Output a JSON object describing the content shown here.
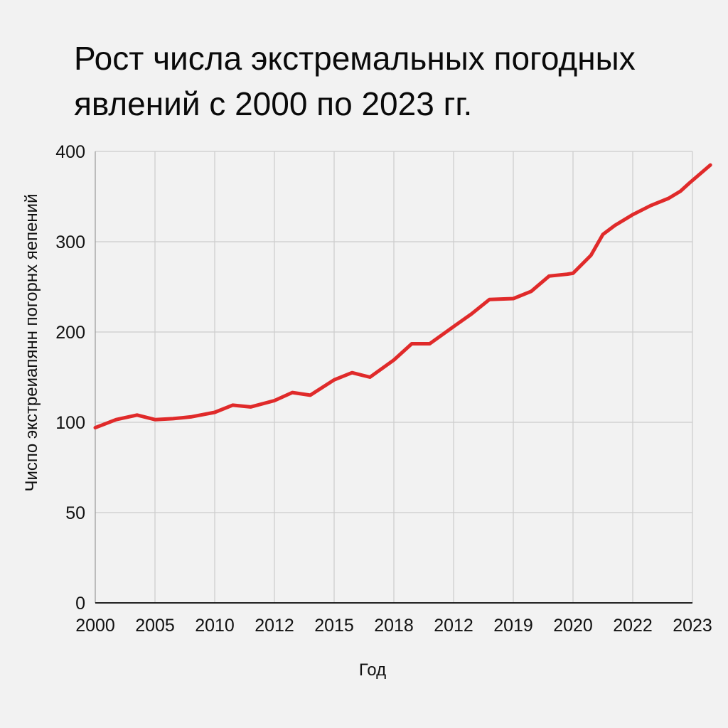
{
  "chart_data": {
    "type": "line",
    "title": "Рост числа экстремальных погодных явлений с 2000 по 2023 гг.",
    "xlabel": "Год",
    "ylabel": "Чиспо экстреиапянн погорнх яепений",
    "x_tick_labels": [
      "2000",
      "2005",
      "2010",
      "2012",
      "2015",
      "2018",
      "2012",
      "2019",
      "2020",
      "2022",
      "2023"
    ],
    "y_tick_labels": [
      "0",
      "50",
      "100",
      "200",
      "300",
      "400"
    ],
    "grid": true,
    "colors": {
      "line": "#e02a2a",
      "grid": "#cccccc",
      "background": "#f2f2f2"
    },
    "series": [
      {
        "x": [
          0,
          0.35,
          0.7,
          1.0,
          1.3,
          1.6,
          2.0,
          2.3,
          2.6,
          3.0,
          3.3,
          3.6,
          4.0,
          4.3,
          4.6,
          5.0,
          5.3,
          5.6,
          6.0,
          6.3,
          6.6,
          7.0,
          7.3,
          7.6,
          7.9,
          8.0,
          8.3,
          8.5,
          8.7,
          9.0,
          9.3,
          9.6,
          9.8,
          9.95,
          10.3
        ],
        "values": [
          97,
          103,
          108,
          103,
          104,
          106,
          111,
          119,
          117,
          124,
          133,
          130,
          147,
          155,
          150,
          169,
          187,
          187,
          206,
          220,
          236,
          237,
          245,
          262,
          264,
          265,
          285,
          308,
          318,
          330,
          340,
          348,
          356,
          365,
          385
        ]
      }
    ]
  }
}
